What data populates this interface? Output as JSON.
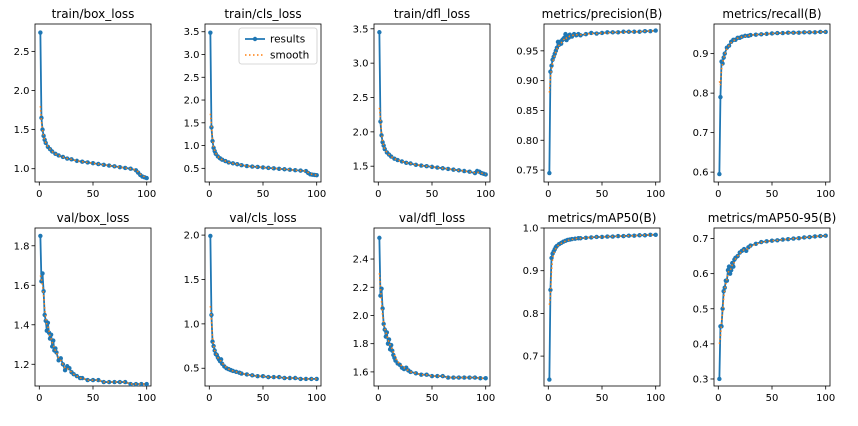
{
  "figure": {
    "background": "#ffffff",
    "results_color": "#1f77b4",
    "smooth_color": "#ff7f0e"
  },
  "legend": {
    "results": "results",
    "smooth": "smooth"
  },
  "chart_data": [
    {
      "type": "line",
      "title": "train/box_loss",
      "xlim": [
        -4,
        104
      ],
      "ylim": [
        0.83,
        2.85
      ],
      "xticks": [
        0,
        50,
        100
      ],
      "xtick_labels": [
        "0",
        "50",
        "100"
      ],
      "yticks": [
        1.0,
        1.5,
        2.0,
        2.5
      ],
      "ytick_labels": [
        "1.0",
        "1.5",
        "2.0",
        "2.5"
      ],
      "x": [
        1,
        2,
        3,
        4,
        5,
        6,
        8,
        10,
        12,
        15,
        18,
        22,
        26,
        30,
        35,
        40,
        45,
        50,
        55,
        60,
        65,
        70,
        75,
        80,
        85,
        90,
        92,
        94,
        96,
        98,
        100
      ],
      "values": [
        2.74,
        1.65,
        1.5,
        1.42,
        1.37,
        1.33,
        1.28,
        1.25,
        1.22,
        1.19,
        1.17,
        1.15,
        1.13,
        1.12,
        1.1,
        1.09,
        1.08,
        1.07,
        1.06,
        1.05,
        1.04,
        1.03,
        1.02,
        1.01,
        1.0,
        0.98,
        0.95,
        0.92,
        0.9,
        0.89,
        0.88
      ],
      "smooth": [
        1.8,
        1.6,
        1.5,
        1.42,
        1.37,
        1.33,
        1.28,
        1.25,
        1.22,
        1.19,
        1.17,
        1.15,
        1.13,
        1.12,
        1.1,
        1.09,
        1.08,
        1.07,
        1.06,
        1.05,
        1.04,
        1.03,
        1.02,
        1.01,
        1.0,
        0.98,
        0.96,
        0.93,
        0.91,
        0.895,
        0.885
      ],
      "legend": false
    },
    {
      "type": "line",
      "title": "train/cls_loss",
      "xlim": [
        -4,
        104
      ],
      "ylim": [
        0.2,
        3.67
      ],
      "xticks": [
        0,
        50,
        100
      ],
      "xtick_labels": [
        "0",
        "50",
        "100"
      ],
      "yticks": [
        0.5,
        1.0,
        1.5,
        2.0,
        2.5,
        3.0,
        3.5
      ],
      "ytick_labels": [
        "0.5",
        "1.0",
        "1.5",
        "2.0",
        "2.5",
        "3.0",
        "3.5"
      ],
      "x": [
        1,
        2,
        3,
        4,
        5,
        6,
        8,
        10,
        12,
        15,
        18,
        22,
        26,
        30,
        35,
        40,
        45,
        50,
        55,
        60,
        65,
        70,
        75,
        80,
        85,
        90,
        92,
        94,
        96,
        98,
        100
      ],
      "values": [
        3.48,
        1.4,
        1.1,
        0.95,
        0.88,
        0.82,
        0.76,
        0.72,
        0.69,
        0.66,
        0.63,
        0.61,
        0.59,
        0.57,
        0.55,
        0.54,
        0.53,
        0.52,
        0.51,
        0.5,
        0.49,
        0.48,
        0.47,
        0.46,
        0.45,
        0.44,
        0.4,
        0.37,
        0.36,
        0.355,
        0.35
      ],
      "smooth": [
        1.7,
        1.45,
        1.15,
        0.98,
        0.89,
        0.83,
        0.76,
        0.72,
        0.69,
        0.66,
        0.63,
        0.61,
        0.59,
        0.57,
        0.55,
        0.54,
        0.53,
        0.52,
        0.51,
        0.5,
        0.49,
        0.48,
        0.47,
        0.46,
        0.45,
        0.44,
        0.41,
        0.38,
        0.365,
        0.357,
        0.352
      ],
      "legend": true
    },
    {
      "type": "line",
      "title": "train/dfl_loss",
      "xlim": [
        -4,
        104
      ],
      "ylim": [
        1.27,
        3.57
      ],
      "xticks": [
        0,
        50,
        100
      ],
      "xtick_labels": [
        "0",
        "50",
        "100"
      ],
      "yticks": [
        1.5,
        2.0,
        2.5,
        3.0,
        3.5
      ],
      "ytick_labels": [
        "1.5",
        "2.0",
        "2.5",
        "3.0",
        "3.5"
      ],
      "x": [
        1,
        2,
        3,
        4,
        5,
        6,
        8,
        10,
        12,
        15,
        18,
        22,
        26,
        30,
        35,
        40,
        45,
        50,
        55,
        60,
        65,
        70,
        75,
        80,
        85,
        90,
        92,
        94,
        96,
        98,
        100
      ],
      "values": [
        3.45,
        2.15,
        1.95,
        1.85,
        1.8,
        1.75,
        1.7,
        1.67,
        1.64,
        1.61,
        1.59,
        1.57,
        1.55,
        1.54,
        1.52,
        1.51,
        1.5,
        1.49,
        1.48,
        1.47,
        1.46,
        1.45,
        1.44,
        1.43,
        1.42,
        1.4,
        1.43,
        1.42,
        1.4,
        1.39,
        1.38
      ],
      "smooth": [
        2.35,
        2.2,
        1.98,
        1.87,
        1.8,
        1.75,
        1.7,
        1.67,
        1.64,
        1.61,
        1.59,
        1.57,
        1.55,
        1.54,
        1.52,
        1.51,
        1.5,
        1.49,
        1.48,
        1.47,
        1.46,
        1.45,
        1.44,
        1.43,
        1.42,
        1.405,
        1.41,
        1.41,
        1.4,
        1.39,
        1.38
      ],
      "legend": false
    },
    {
      "type": "line",
      "title": "metrics/precision(B)",
      "xlim": [
        -4,
        104
      ],
      "ylim": [
        0.73,
        0.995
      ],
      "xticks": [
        0,
        50,
        100
      ],
      "xtick_labels": [
        "0",
        "50",
        "100"
      ],
      "yticks": [
        0.75,
        0.8,
        0.85,
        0.9,
        0.95
      ],
      "ytick_labels": [
        "0.75",
        "0.80",
        "0.85",
        "0.90",
        "0.95"
      ],
      "x": [
        1,
        2,
        3,
        4,
        5,
        6,
        7,
        8,
        9,
        10,
        11,
        12,
        13,
        14,
        15,
        16,
        17,
        18,
        19,
        20,
        22,
        24,
        26,
        28,
        30,
        35,
        40,
        45,
        50,
        55,
        60,
        65,
        70,
        75,
        80,
        85,
        90,
        95,
        100
      ],
      "values": [
        0.745,
        0.915,
        0.925,
        0.935,
        0.94,
        0.945,
        0.95,
        0.955,
        0.965,
        0.96,
        0.965,
        0.962,
        0.968,
        0.97,
        0.972,
        0.978,
        0.968,
        0.975,
        0.972,
        0.977,
        0.974,
        0.978,
        0.976,
        0.978,
        0.976,
        0.978,
        0.98,
        0.979,
        0.98,
        0.981,
        0.981,
        0.981,
        0.982,
        0.982,
        0.982,
        0.982,
        0.983,
        0.983,
        0.984
      ],
      "smooth": [
        0.88,
        0.905,
        0.92,
        0.93,
        0.937,
        0.943,
        0.948,
        0.953,
        0.958,
        0.959,
        0.962,
        0.963,
        0.966,
        0.968,
        0.97,
        0.973,
        0.971,
        0.973,
        0.973,
        0.975,
        0.975,
        0.977,
        0.977,
        0.977,
        0.977,
        0.978,
        0.979,
        0.979,
        0.98,
        0.98,
        0.981,
        0.981,
        0.981,
        0.982,
        0.982,
        0.982,
        0.983,
        0.983,
        0.984
      ],
      "legend": false
    },
    {
      "type": "line",
      "title": "metrics/recall(B)",
      "xlim": [
        -4,
        104
      ],
      "ylim": [
        0.575,
        0.975
      ],
      "xticks": [
        0,
        50,
        100
      ],
      "xtick_labels": [
        "0",
        "50",
        "100"
      ],
      "yticks": [
        0.6,
        0.7,
        0.8,
        0.9
      ],
      "ytick_labels": [
        "0.6",
        "0.7",
        "0.8",
        "0.9"
      ],
      "x": [
        1,
        2,
        3,
        4,
        5,
        6,
        8,
        10,
        12,
        14,
        16,
        18,
        20,
        22,
        25,
        28,
        30,
        35,
        40,
        45,
        50,
        55,
        60,
        65,
        70,
        75,
        80,
        85,
        90,
        95,
        100
      ],
      "values": [
        0.595,
        0.79,
        0.88,
        0.875,
        0.89,
        0.9,
        0.915,
        0.92,
        0.93,
        0.935,
        0.935,
        0.94,
        0.94,
        0.943,
        0.945,
        0.945,
        0.947,
        0.948,
        0.949,
        0.95,
        0.951,
        0.952,
        0.952,
        0.953,
        0.953,
        0.953,
        0.954,
        0.954,
        0.954,
        0.955,
        0.955
      ],
      "smooth": [
        0.83,
        0.82,
        0.86,
        0.875,
        0.888,
        0.898,
        0.912,
        0.92,
        0.928,
        0.933,
        0.935,
        0.939,
        0.94,
        0.942,
        0.944,
        0.945,
        0.947,
        0.948,
        0.949,
        0.95,
        0.951,
        0.952,
        0.952,
        0.953,
        0.953,
        0.953,
        0.954,
        0.954,
        0.954,
        0.955,
        0.955
      ],
      "legend": false
    },
    {
      "type": "line",
      "title": "val/box_loss",
      "xlim": [
        -4,
        104
      ],
      "ylim": [
        1.09,
        1.89
      ],
      "xticks": [
        0,
        50,
        100
      ],
      "xtick_labels": [
        "0",
        "50",
        "100"
      ],
      "yticks": [
        1.2,
        1.4,
        1.6,
        1.8
      ],
      "ytick_labels": [
        "1.2",
        "1.4",
        "1.6",
        "1.8"
      ],
      "x": [
        1,
        2,
        3,
        4,
        5,
        6,
        7,
        8,
        9,
        10,
        11,
        12,
        13,
        14,
        15,
        16,
        18,
        20,
        22,
        24,
        26,
        28,
        30,
        32,
        35,
        38,
        40,
        45,
        50,
        55,
        60,
        65,
        70,
        75,
        80,
        85,
        90,
        95,
        100
      ],
      "values": [
        1.85,
        1.62,
        1.66,
        1.57,
        1.45,
        1.42,
        1.37,
        1.41,
        1.36,
        1.33,
        1.35,
        1.29,
        1.32,
        1.27,
        1.28,
        1.26,
        1.22,
        1.23,
        1.2,
        1.17,
        1.19,
        1.18,
        1.16,
        1.15,
        1.14,
        1.13,
        1.13,
        1.12,
        1.12,
        1.12,
        1.11,
        1.11,
        1.11,
        1.11,
        1.11,
        1.1,
        1.1,
        1.1,
        1.1
      ],
      "smooth": [
        1.65,
        1.63,
        1.6,
        1.55,
        1.48,
        1.44,
        1.4,
        1.39,
        1.37,
        1.34,
        1.33,
        1.31,
        1.3,
        1.28,
        1.27,
        1.26,
        1.23,
        1.22,
        1.2,
        1.18,
        1.18,
        1.17,
        1.16,
        1.15,
        1.14,
        1.13,
        1.13,
        1.12,
        1.12,
        1.12,
        1.11,
        1.11,
        1.11,
        1.11,
        1.11,
        1.1,
        1.1,
        1.1,
        1.1
      ],
      "legend": false
    },
    {
      "type": "line",
      "title": "val/cls_loss",
      "xlim": [
        -4,
        104
      ],
      "ylim": [
        0.3,
        2.08
      ],
      "xticks": [
        0,
        50,
        100
      ],
      "xtick_labels": [
        "0",
        "50",
        "100"
      ],
      "yticks": [
        0.5,
        1.0,
        1.5,
        2.0
      ],
      "ytick_labels": [
        "0.5",
        "1.0",
        "1.5",
        "2.0"
      ],
      "x": [
        1,
        2,
        3,
        4,
        5,
        6,
        7,
        8,
        9,
        10,
        11,
        12,
        14,
        16,
        18,
        20,
        22,
        25,
        28,
        30,
        35,
        40,
        45,
        50,
        55,
        60,
        65,
        70,
        75,
        80,
        85,
        90,
        95,
        100
      ],
      "values": [
        1.99,
        1.1,
        0.8,
        0.75,
        0.7,
        0.66,
        0.65,
        0.62,
        0.6,
        0.58,
        0.6,
        0.55,
        0.52,
        0.5,
        0.49,
        0.48,
        0.47,
        0.46,
        0.45,
        0.44,
        0.43,
        0.42,
        0.41,
        0.41,
        0.4,
        0.4,
        0.4,
        0.39,
        0.39,
        0.39,
        0.38,
        0.38,
        0.38,
        0.38
      ],
      "smooth": [
        1.2,
        1.05,
        0.85,
        0.76,
        0.7,
        0.67,
        0.65,
        0.62,
        0.6,
        0.59,
        0.58,
        0.56,
        0.53,
        0.51,
        0.49,
        0.48,
        0.47,
        0.46,
        0.45,
        0.44,
        0.43,
        0.42,
        0.41,
        0.41,
        0.4,
        0.4,
        0.4,
        0.39,
        0.39,
        0.39,
        0.38,
        0.38,
        0.38,
        0.38
      ],
      "legend": false
    },
    {
      "type": "line",
      "title": "val/dfl_loss",
      "xlim": [
        -4,
        104
      ],
      "ylim": [
        1.5,
        2.62
      ],
      "xticks": [
        0,
        50,
        100
      ],
      "xtick_labels": [
        "0",
        "50",
        "100"
      ],
      "yticks": [
        1.6,
        1.8,
        2.0,
        2.2,
        2.4
      ],
      "ytick_labels": [
        "1.6",
        "1.8",
        "2.0",
        "2.2",
        "2.4"
      ],
      "x": [
        1,
        2,
        3,
        4,
        5,
        6,
        7,
        8,
        9,
        10,
        11,
        12,
        13,
        14,
        15,
        16,
        18,
        20,
        22,
        24,
        26,
        28,
        30,
        35,
        40,
        45,
        50,
        55,
        60,
        65,
        70,
        75,
        80,
        85,
        90,
        95,
        100
      ],
      "values": [
        2.55,
        2.14,
        2.19,
        2.05,
        1.94,
        1.9,
        1.85,
        1.88,
        1.8,
        1.83,
        1.76,
        1.79,
        1.75,
        1.72,
        1.7,
        1.68,
        1.66,
        1.65,
        1.63,
        1.62,
        1.63,
        1.61,
        1.6,
        1.59,
        1.58,
        1.58,
        1.57,
        1.57,
        1.57,
        1.56,
        1.56,
        1.56,
        1.56,
        1.56,
        1.56,
        1.555,
        1.555
      ],
      "smooth": [
        2.3,
        2.2,
        2.1,
        2.0,
        1.95,
        1.91,
        1.88,
        1.86,
        1.83,
        1.81,
        1.79,
        1.78,
        1.76,
        1.74,
        1.72,
        1.7,
        1.67,
        1.66,
        1.64,
        1.63,
        1.62,
        1.61,
        1.6,
        1.59,
        1.58,
        1.58,
        1.57,
        1.57,
        1.57,
        1.56,
        1.56,
        1.56,
        1.56,
        1.56,
        1.56,
        1.555,
        1.555
      ],
      "legend": false
    },
    {
      "type": "line",
      "title": "metrics/mAP50(B)",
      "xlim": [
        -4,
        104
      ],
      "ylim": [
        0.63,
        1.0
      ],
      "xticks": [
        0,
        50,
        100
      ],
      "xtick_labels": [
        "0",
        "50",
        "100"
      ],
      "yticks": [
        0.7,
        0.8,
        0.9,
        1.0
      ],
      "ytick_labels": [
        "0.7",
        "0.8",
        "0.9",
        "1.0"
      ],
      "x": [
        1,
        2,
        3,
        4,
        5,
        6,
        7,
        8,
        10,
        12,
        14,
        16,
        18,
        20,
        22,
        25,
        28,
        30,
        35,
        40,
        45,
        50,
        55,
        60,
        65,
        70,
        75,
        80,
        85,
        90,
        95,
        100
      ],
      "values": [
        0.645,
        0.855,
        0.93,
        0.94,
        0.945,
        0.95,
        0.955,
        0.958,
        0.962,
        0.965,
        0.968,
        0.97,
        0.972,
        0.973,
        0.974,
        0.975,
        0.976,
        0.976,
        0.977,
        0.978,
        0.979,
        0.979,
        0.98,
        0.98,
        0.981,
        0.981,
        0.982,
        0.982,
        0.983,
        0.983,
        0.984,
        0.984
      ],
      "smooth": [
        0.82,
        0.84,
        0.9,
        0.928,
        0.94,
        0.947,
        0.952,
        0.956,
        0.961,
        0.964,
        0.967,
        0.969,
        0.971,
        0.972,
        0.973,
        0.975,
        0.976,
        0.976,
        0.977,
        0.978,
        0.979,
        0.979,
        0.98,
        0.98,
        0.981,
        0.981,
        0.982,
        0.982,
        0.983,
        0.983,
        0.984,
        0.984
      ],
      "legend": false
    },
    {
      "type": "line",
      "title": "metrics/mAP50-95(B)",
      "xlim": [
        -4,
        104
      ],
      "ylim": [
        0.28,
        0.73
      ],
      "xticks": [
        0,
        50,
        100
      ],
      "xtick_labels": [
        "0",
        "50",
        "100"
      ],
      "yticks": [
        0.3,
        0.4,
        0.5,
        0.6,
        0.7
      ],
      "ytick_labels": [
        "0.3",
        "0.4",
        "0.5",
        "0.6",
        "0.7"
      ],
      "x": [
        1,
        2,
        3,
        4,
        5,
        6,
        7,
        8,
        9,
        10,
        11,
        12,
        13,
        14,
        15,
        16,
        18,
        20,
        22,
        24,
        26,
        28,
        30,
        35,
        40,
        45,
        50,
        55,
        60,
        65,
        70,
        75,
        80,
        85,
        90,
        95,
        100
      ],
      "values": [
        0.3,
        0.45,
        0.45,
        0.5,
        0.55,
        0.56,
        0.58,
        0.58,
        0.61,
        0.62,
        0.6,
        0.61,
        0.63,
        0.62,
        0.64,
        0.645,
        0.65,
        0.66,
        0.665,
        0.67,
        0.665,
        0.675,
        0.68,
        0.685,
        0.69,
        0.692,
        0.694,
        0.695,
        0.697,
        0.698,
        0.7,
        0.701,
        0.703,
        0.704,
        0.706,
        0.707,
        0.708
      ],
      "smooth": [
        0.4,
        0.42,
        0.46,
        0.49,
        0.53,
        0.555,
        0.57,
        0.585,
        0.6,
        0.61,
        0.61,
        0.615,
        0.625,
        0.625,
        0.635,
        0.642,
        0.65,
        0.658,
        0.663,
        0.668,
        0.668,
        0.673,
        0.678,
        0.684,
        0.689,
        0.692,
        0.694,
        0.695,
        0.697,
        0.698,
        0.7,
        0.701,
        0.703,
        0.704,
        0.706,
        0.707,
        0.708
      ],
      "legend": false
    }
  ]
}
